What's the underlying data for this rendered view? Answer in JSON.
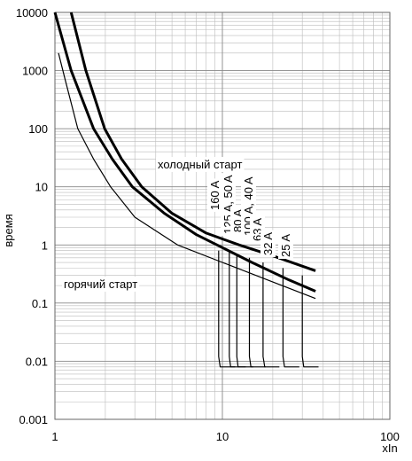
{
  "chart_data": {
    "type": "line",
    "log_x": true,
    "log_y": true,
    "grid": true,
    "minor_grid": true,
    "x_label": "xIn",
    "y_label": "время",
    "xlim": [
      1,
      100
    ],
    "xticks": [
      1,
      10,
      100
    ],
    "ylim": [
      0.001,
      10000
    ],
    "yticks": [
      0.001,
      0.01,
      0.1,
      1,
      10,
      100,
      1000,
      10000
    ],
    "series": [
      {
        "color": "#000000",
        "width": 3,
        "x": [
          1.25,
          1.53,
          1.98,
          2.5,
          3.3,
          5,
          8,
          12.6,
          20,
          36
        ],
        "values": [
          10000,
          1000,
          100,
          30,
          10,
          3.5,
          1.6,
          1,
          0.65,
          0.36
        ]
      },
      {
        "color": "#000000",
        "width": 3,
        "x": [
          1.0,
          1.25,
          1.7,
          2.2,
          2.9,
          4.5,
          7,
          9.3,
          15,
          25,
          36
        ],
        "values": [
          10000,
          1000,
          100,
          30,
          10,
          3.5,
          1.5,
          1,
          0.5,
          0.25,
          0.16
        ]
      },
      {
        "color": "#000000",
        "width": 1.2,
        "x": [
          1.05,
          1.15,
          1.37,
          1.7,
          2.15,
          3,
          5.4,
          10,
          20,
          36
        ],
        "values": [
          2000,
          700,
          100,
          30,
          10,
          3,
          1,
          0.5,
          0.23,
          0.12
        ]
      },
      {
        "color": "#000000",
        "width": 1.2,
        "x": [
          9.5,
          9.5,
          9.7,
          11.9
        ],
        "values": [
          0.8,
          0.012,
          0.008,
          0.008
        ]
      },
      {
        "color": "#000000",
        "width": 1.2,
        "x": [
          11,
          11,
          11.2,
          13.8
        ],
        "values": [
          0.8,
          0.012,
          0.008,
          0.008
        ]
      },
      {
        "color": "#000000",
        "width": 1.2,
        "x": [
          12.2,
          12.2,
          12.4,
          15.3
        ],
        "values": [
          0.7,
          0.012,
          0.008,
          0.008
        ]
      },
      {
        "color": "#000000",
        "width": 1.2,
        "x": [
          14.5,
          14.5,
          14.8,
          18.1
        ],
        "values": [
          0.6,
          0.012,
          0.008,
          0.008
        ]
      },
      {
        "color": "#000000",
        "width": 1.2,
        "x": [
          17.5,
          17.5,
          17.9,
          21.9
        ],
        "values": [
          0.5,
          0.012,
          0.008,
          0.008
        ]
      },
      {
        "color": "#000000",
        "width": 1.2,
        "x": [
          23,
          23,
          23.5,
          28.8
        ],
        "values": [
          0.4,
          0.012,
          0.008,
          0.008
        ]
      },
      {
        "color": "#000000",
        "width": 1.2,
        "x": [
          30,
          30,
          30.6,
          37.5
        ],
        "values": [
          0.3,
          0.012,
          0.008,
          0.008
        ]
      }
    ],
    "annotations": [
      "холодный старт",
      "горячий старт",
      "160 A",
      "125 A, 50 A",
      "80 A",
      "100 A, 40 A",
      "63 A",
      "32 A",
      "25 A"
    ]
  }
}
